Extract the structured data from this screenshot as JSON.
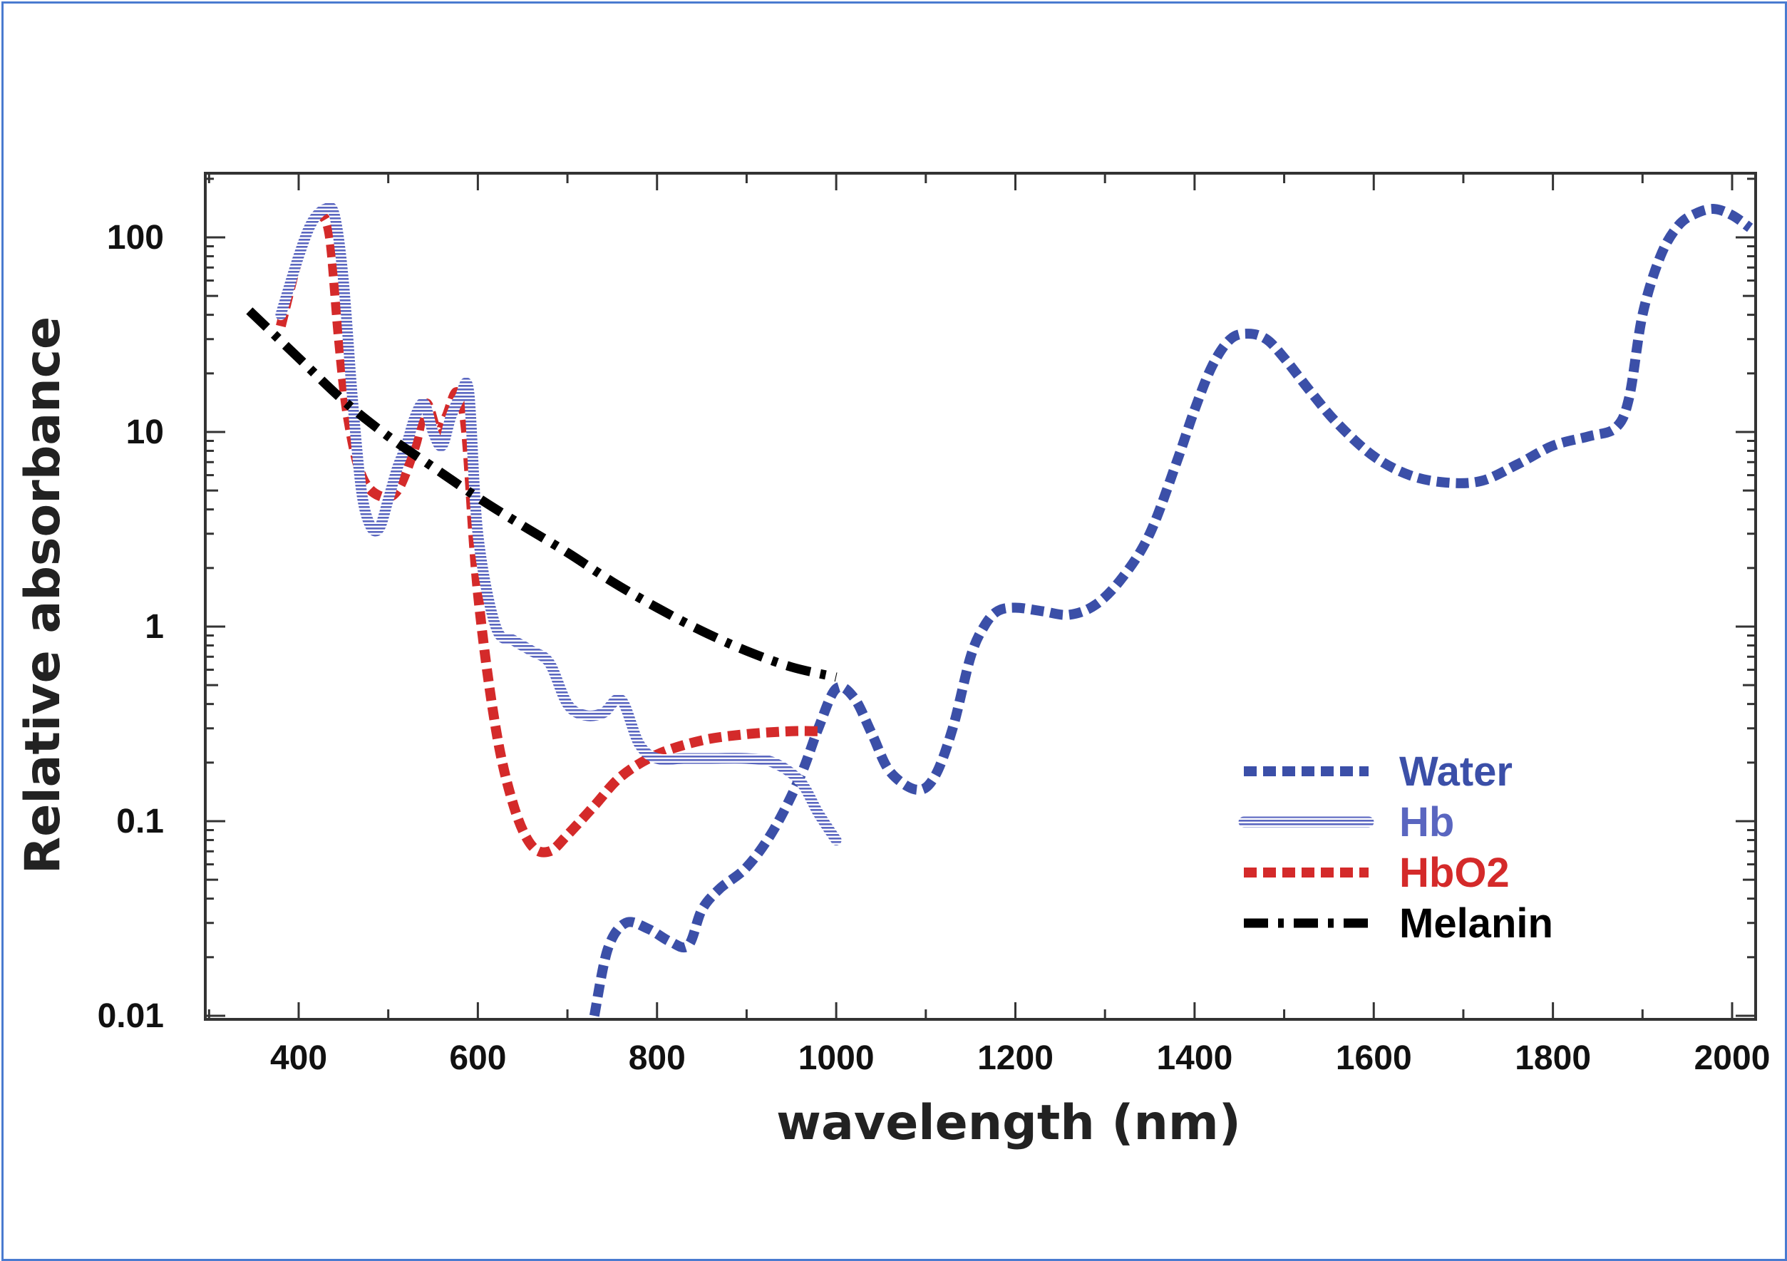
{
  "chart_data": {
    "type": "line",
    "title": "",
    "xlabel": "wavelength (nm)",
    "ylabel": "Relative absorbance",
    "xlim": [
      300,
      2050
    ],
    "ylim": [
      0.01,
      300
    ],
    "yscale": "log",
    "grid": false,
    "legend_position": "bottom-right",
    "x_ticks": [
      {
        "value": 400,
        "label": "400"
      },
      {
        "value": 600,
        "label": "600"
      },
      {
        "value": 800,
        "label": "800"
      },
      {
        "value": 1000,
        "label": "1000"
      },
      {
        "value": 1200,
        "label": "1200"
      },
      {
        "value": 1400,
        "label": "1400"
      },
      {
        "value": 1600,
        "label": "1600"
      },
      {
        "value": 1800,
        "label": "1800"
      },
      {
        "value": 2000,
        "label": "2000"
      }
    ],
    "y_ticks": [
      {
        "value": 0.01,
        "label": "0.01"
      },
      {
        "value": 0.1,
        "label": "0.1"
      },
      {
        "value": 1,
        "label": "1"
      },
      {
        "value": 10,
        "label": "10"
      },
      {
        "value": 100,
        "label": "100"
      }
    ],
    "series": [
      {
        "name": "Water",
        "color": "#3b4fa8",
        "style": "dashed",
        "x": [
          730,
          745,
          765,
          790,
          815,
          835,
          850,
          870,
          900,
          930,
          960,
          980,
          1000,
          1020,
          1040,
          1060,
          1090,
          1110,
          1130,
          1150,
          1165,
          1180,
          1200,
          1230,
          1260,
          1290,
          1320,
          1350,
          1380,
          1400,
          1420,
          1440,
          1460,
          1480,
          1500,
          1530,
          1560,
          1600,
          1640,
          1680,
          1720,
          1760,
          1800,
          1840,
          1870,
          1885,
          1900,
          1920,
          1940,
          1960,
          1980,
          2000,
          2020
        ],
        "y": [
          0.01,
          0.022,
          0.03,
          0.028,
          0.024,
          0.023,
          0.035,
          0.045,
          0.058,
          0.09,
          0.17,
          0.3,
          0.48,
          0.43,
          0.28,
          0.18,
          0.145,
          0.17,
          0.3,
          0.7,
          1.0,
          1.2,
          1.25,
          1.2,
          1.15,
          1.3,
          1.8,
          3.0,
          7.0,
          13,
          22,
          30,
          32,
          30,
          24,
          16,
          11,
          7.5,
          6.0,
          5.5,
          5.6,
          6.8,
          8.5,
          9.5,
          10.5,
          15,
          40,
          80,
          115,
          133,
          140,
          130,
          112
        ]
      },
      {
        "name": "Hb",
        "color": "#5a66c0",
        "style": "striped",
        "x": [
          380,
          400,
          415,
          430,
          440,
          450,
          460,
          470,
          480,
          490,
          500,
          510,
          520,
          530,
          540,
          550,
          560,
          570,
          580,
          590,
          600,
          620,
          640,
          660,
          680,
          700,
          720,
          740,
          760,
          780,
          800,
          830,
          860,
          900,
          930,
          960,
          980,
          1000
        ],
        "y": [
          40,
          80,
          120,
          140,
          130,
          60,
          15,
          5,
          3.3,
          3.2,
          4.5,
          6.5,
          8.5,
          12,
          14,
          10,
          8.5,
          12,
          15,
          16,
          3.0,
          1.0,
          0.85,
          0.75,
          0.65,
          0.4,
          0.35,
          0.36,
          0.42,
          0.25,
          0.21,
          0.21,
          0.21,
          0.21,
          0.2,
          0.16,
          0.11,
          0.08
        ]
      },
      {
        "name": "HbO2",
        "color": "#d42a2a",
        "style": "dashed",
        "x": [
          380,
          400,
          415,
          425,
          435,
          445,
          455,
          470,
          490,
          510,
          530,
          542,
          555,
          565,
          577,
          587,
          600,
          620,
          640,
          660,
          680,
          700,
          730,
          760,
          800,
          850,
          900,
          950,
          980
        ],
        "y": [
          35,
          80,
          120,
          130,
          100,
          30,
          12,
          6,
          4.7,
          5.0,
          8.5,
          14,
          10,
          12,
          16,
          10,
          1.5,
          0.3,
          0.12,
          0.075,
          0.07,
          0.085,
          0.12,
          0.17,
          0.22,
          0.26,
          0.28,
          0.29,
          0.29
        ]
      },
      {
        "name": "Melanin",
        "color": "#000000",
        "style": "dash-dot",
        "x": [
          345,
          400,
          450,
          500,
          550,
          600,
          650,
          700,
          750,
          800,
          850,
          900,
          950,
          1000
        ],
        "y": [
          42,
          24,
          14.5,
          9.5,
          6.6,
          4.6,
          3.3,
          2.4,
          1.7,
          1.25,
          0.95,
          0.75,
          0.62,
          0.55
        ]
      }
    ]
  }
}
